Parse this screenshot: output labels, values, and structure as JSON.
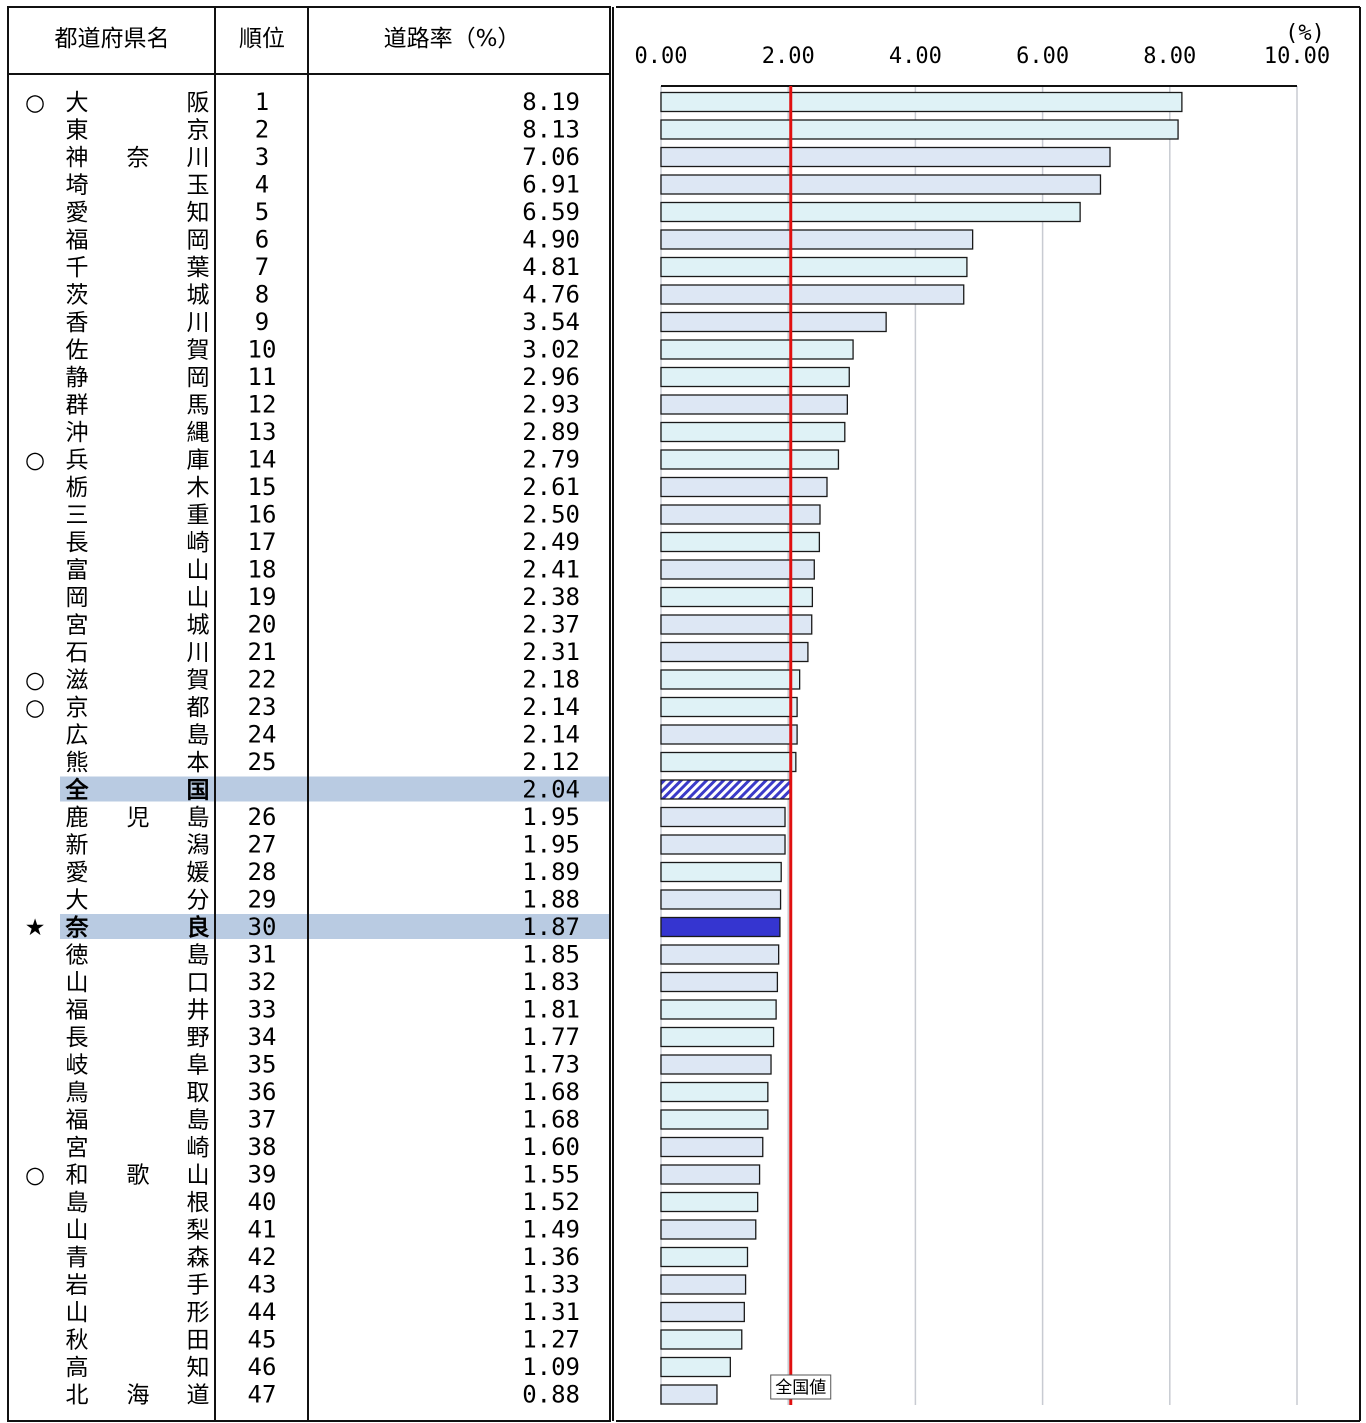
{
  "table": {
    "headers": {
      "name": "都道府県名",
      "rank": "順位",
      "rate": "道路率（%）"
    }
  },
  "colors": {
    "bar_light": "#dff2f6",
    "bar_light_alt": "#dde7f4",
    "bar_highlight": "#3535d0",
    "national_hatch": "#3b3bc8",
    "national_line": "#e01010",
    "row_highlight": "#b9cbe2",
    "grid": "#c8cbd2"
  },
  "chart_data": {
    "type": "bar",
    "orientation": "horizontal",
    "unit_label": "(%)",
    "xlim": [
      0,
      10
    ],
    "x_ticks": [
      "0.00",
      "2.00",
      "4.00",
      "6.00",
      "8.00",
      "10.00"
    ],
    "grid": true,
    "reference_line": {
      "value": 2.04,
      "label": "全国値"
    },
    "rows": [
      {
        "mark": "○",
        "chars": [
          "大",
          "",
          "阪"
        ],
        "rank": "1",
        "value": "8.19"
      },
      {
        "mark": "",
        "chars": [
          "東",
          "",
          "京"
        ],
        "rank": "2",
        "value": "8.13"
      },
      {
        "mark": "",
        "chars": [
          "神",
          "奈",
          "川"
        ],
        "rank": "3",
        "value": "7.06"
      },
      {
        "mark": "",
        "chars": [
          "埼",
          "",
          "玉"
        ],
        "rank": "4",
        "value": "6.91"
      },
      {
        "mark": "",
        "chars": [
          "愛",
          "",
          "知"
        ],
        "rank": "5",
        "value": "6.59"
      },
      {
        "mark": "",
        "chars": [
          "福",
          "",
          "岡"
        ],
        "rank": "6",
        "value": "4.90"
      },
      {
        "mark": "",
        "chars": [
          "千",
          "",
          "葉"
        ],
        "rank": "7",
        "value": "4.81"
      },
      {
        "mark": "",
        "chars": [
          "茨",
          "",
          "城"
        ],
        "rank": "8",
        "value": "4.76"
      },
      {
        "mark": "",
        "chars": [
          "香",
          "",
          "川"
        ],
        "rank": "9",
        "value": "3.54"
      },
      {
        "mark": "",
        "chars": [
          "佐",
          "",
          "賀"
        ],
        "rank": "10",
        "value": "3.02"
      },
      {
        "mark": "",
        "chars": [
          "静",
          "",
          "岡"
        ],
        "rank": "11",
        "value": "2.96"
      },
      {
        "mark": "",
        "chars": [
          "群",
          "",
          "馬"
        ],
        "rank": "12",
        "value": "2.93"
      },
      {
        "mark": "",
        "chars": [
          "沖",
          "",
          "縄"
        ],
        "rank": "13",
        "value": "2.89"
      },
      {
        "mark": "○",
        "chars": [
          "兵",
          "",
          "庫"
        ],
        "rank": "14",
        "value": "2.79"
      },
      {
        "mark": "",
        "chars": [
          "栃",
          "",
          "木"
        ],
        "rank": "15",
        "value": "2.61"
      },
      {
        "mark": "",
        "chars": [
          "三",
          "",
          "重"
        ],
        "rank": "16",
        "value": "2.50"
      },
      {
        "mark": "",
        "chars": [
          "長",
          "",
          "崎"
        ],
        "rank": "17",
        "value": "2.49"
      },
      {
        "mark": "",
        "chars": [
          "富",
          "",
          "山"
        ],
        "rank": "18",
        "value": "2.41"
      },
      {
        "mark": "",
        "chars": [
          "岡",
          "",
          "山"
        ],
        "rank": "19",
        "value": "2.38"
      },
      {
        "mark": "",
        "chars": [
          "宮",
          "",
          "城"
        ],
        "rank": "20",
        "value": "2.37"
      },
      {
        "mark": "",
        "chars": [
          "石",
          "",
          "川"
        ],
        "rank": "21",
        "value": "2.31"
      },
      {
        "mark": "○",
        "chars": [
          "滋",
          "",
          "賀"
        ],
        "rank": "22",
        "value": "2.18"
      },
      {
        "mark": "○",
        "chars": [
          "京",
          "",
          "都"
        ],
        "rank": "23",
        "value": "2.14"
      },
      {
        "mark": "",
        "chars": [
          "広",
          "",
          "島"
        ],
        "rank": "24",
        "value": "2.14"
      },
      {
        "mark": "",
        "chars": [
          "熊",
          "",
          "本"
        ],
        "rank": "25",
        "value": "2.12"
      },
      {
        "mark": "",
        "chars": [
          "全",
          "",
          "国"
        ],
        "rank": "",
        "value": "2.04",
        "kind": "national"
      },
      {
        "mark": "",
        "chars": [
          "鹿",
          "児",
          "島"
        ],
        "rank": "26",
        "value": "1.95"
      },
      {
        "mark": "",
        "chars": [
          "新",
          "",
          "潟"
        ],
        "rank": "27",
        "value": "1.95"
      },
      {
        "mark": "",
        "chars": [
          "愛",
          "",
          "媛"
        ],
        "rank": "28",
        "value": "1.89"
      },
      {
        "mark": "",
        "chars": [
          "大",
          "",
          "分"
        ],
        "rank": "29",
        "value": "1.88"
      },
      {
        "mark": "★",
        "chars": [
          "奈",
          "",
          "良"
        ],
        "rank": "30",
        "value": "1.87",
        "kind": "highlight"
      },
      {
        "mark": "",
        "chars": [
          "徳",
          "",
          "島"
        ],
        "rank": "31",
        "value": "1.85"
      },
      {
        "mark": "",
        "chars": [
          "山",
          "",
          "口"
        ],
        "rank": "32",
        "value": "1.83"
      },
      {
        "mark": "",
        "chars": [
          "福",
          "",
          "井"
        ],
        "rank": "33",
        "value": "1.81"
      },
      {
        "mark": "",
        "chars": [
          "長",
          "",
          "野"
        ],
        "rank": "34",
        "value": "1.77"
      },
      {
        "mark": "",
        "chars": [
          "岐",
          "",
          "阜"
        ],
        "rank": "35",
        "value": "1.73"
      },
      {
        "mark": "",
        "chars": [
          "鳥",
          "",
          "取"
        ],
        "rank": "36",
        "value": "1.68"
      },
      {
        "mark": "",
        "chars": [
          "福",
          "",
          "島"
        ],
        "rank": "37",
        "value": "1.68"
      },
      {
        "mark": "",
        "chars": [
          "宮",
          "",
          "崎"
        ],
        "rank": "38",
        "value": "1.60"
      },
      {
        "mark": "○",
        "chars": [
          "和",
          "歌",
          "山"
        ],
        "rank": "39",
        "value": "1.55"
      },
      {
        "mark": "",
        "chars": [
          "島",
          "",
          "根"
        ],
        "rank": "40",
        "value": "1.52"
      },
      {
        "mark": "",
        "chars": [
          "山",
          "",
          "梨"
        ],
        "rank": "41",
        "value": "1.49"
      },
      {
        "mark": "",
        "chars": [
          "青",
          "",
          "森"
        ],
        "rank": "42",
        "value": "1.36"
      },
      {
        "mark": "",
        "chars": [
          "岩",
          "",
          "手"
        ],
        "rank": "43",
        "value": "1.33"
      },
      {
        "mark": "",
        "chars": [
          "山",
          "",
          "形"
        ],
        "rank": "44",
        "value": "1.31"
      },
      {
        "mark": "",
        "chars": [
          "秋",
          "",
          "田"
        ],
        "rank": "45",
        "value": "1.27"
      },
      {
        "mark": "",
        "chars": [
          "高",
          "",
          "知"
        ],
        "rank": "46",
        "value": "1.09"
      },
      {
        "mark": "",
        "chars": [
          "北",
          "海",
          "道"
        ],
        "rank": "47",
        "value": "0.88"
      }
    ]
  }
}
